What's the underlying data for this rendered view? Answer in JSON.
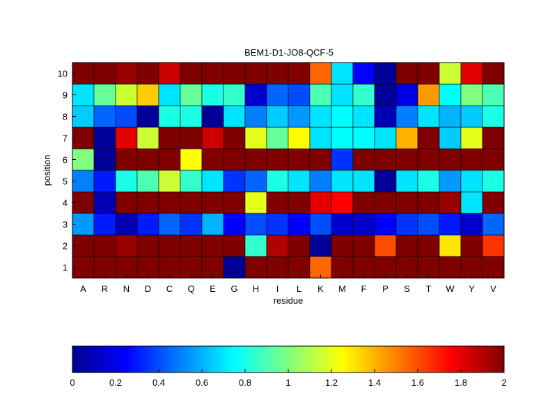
{
  "chart_data": {
    "type": "heatmap",
    "title": "BEM1-D1-JO8-QCF-5",
    "xlabel": "residue",
    "ylabel": "position",
    "x": [
      "A",
      "R",
      "N",
      "D",
      "C",
      "Q",
      "E",
      "G",
      "H",
      "I",
      "L",
      "K",
      "M",
      "F",
      "P",
      "S",
      "T",
      "W",
      "Y",
      "V"
    ],
    "y": [
      1,
      2,
      3,
      4,
      5,
      6,
      7,
      8,
      9,
      10
    ],
    "colorbar": {
      "min": 0,
      "max": 2,
      "ticks": [
        "0",
        "0.2",
        "0.4",
        "0.6",
        "0.8",
        "1",
        "1.2",
        "1.4",
        "1.6",
        "1.8",
        "2"
      ],
      "colormap": "jet",
      "placement": "bottom"
    },
    "values": [
      [
        2.0,
        2.0,
        2.0,
        2.0,
        2.0,
        2.0,
        2.0,
        0.05,
        2.0,
        2.0,
        2.0,
        1.55,
        2.0,
        2.0,
        2.0,
        2.0,
        2.0,
        2.0,
        2.0,
        2.0
      ],
      [
        2.0,
        2.0,
        1.95,
        2.0,
        2.0,
        2.0,
        2.0,
        2.0,
        0.85,
        1.9,
        2.0,
        0.05,
        2.0,
        2.0,
        1.6,
        2.0,
        2.0,
        1.3,
        2.0,
        1.65
      ],
      [
        0.55,
        0.3,
        0.1,
        0.3,
        0.45,
        0.35,
        0.6,
        0.25,
        0.4,
        0.35,
        0.25,
        0.4,
        0.15,
        0.15,
        0.25,
        0.35,
        0.4,
        0.3,
        0.15,
        0.45
      ],
      [
        2.0,
        0.1,
        2.0,
        2.0,
        2.0,
        2.0,
        2.0,
        2.0,
        1.2,
        2.0,
        2.0,
        1.8,
        1.75,
        2.0,
        2.0,
        2.0,
        2.0,
        1.95,
        0.7,
        2.0
      ],
      [
        0.5,
        0.3,
        0.8,
        0.9,
        1.15,
        0.85,
        0.7,
        0.35,
        0.45,
        0.8,
        0.7,
        0.5,
        0.7,
        0.7,
        0.05,
        0.7,
        0.8,
        0.55,
        0.7,
        0.8
      ],
      [
        1.0,
        0.05,
        2.0,
        2.0,
        2.0,
        1.25,
        2.0,
        2.0,
        2.0,
        2.0,
        2.0,
        2.0,
        0.35,
        2.0,
        2.0,
        2.0,
        2.0,
        2.0,
        2.0,
        2.0
      ],
      [
        2.0,
        0.05,
        1.8,
        1.15,
        2.0,
        2.0,
        1.85,
        2.0,
        1.2,
        0.95,
        1.25,
        0.7,
        0.75,
        0.75,
        0.7,
        1.4,
        2.0,
        0.65,
        1.2,
        2.0
      ],
      [
        0.65,
        0.45,
        0.4,
        0.05,
        0.8,
        0.8,
        0.05,
        0.7,
        0.5,
        0.65,
        0.55,
        0.7,
        0.75,
        0.7,
        0.1,
        0.5,
        0.7,
        0.6,
        0.65,
        0.8
      ],
      [
        0.7,
        0.95,
        1.15,
        1.35,
        0.7,
        0.95,
        0.8,
        0.85,
        0.15,
        0.45,
        0.4,
        0.9,
        0.7,
        0.85,
        0.05,
        0.2,
        1.45,
        0.75,
        1.0,
        0.9
      ],
      [
        2.0,
        2.0,
        1.95,
        2.0,
        1.85,
        2.0,
        2.0,
        2.0,
        2.0,
        2.0,
        2.0,
        1.55,
        0.7,
        0.25,
        0.05,
        2.0,
        2.0,
        1.15,
        1.8,
        2.0
      ]
    ]
  }
}
